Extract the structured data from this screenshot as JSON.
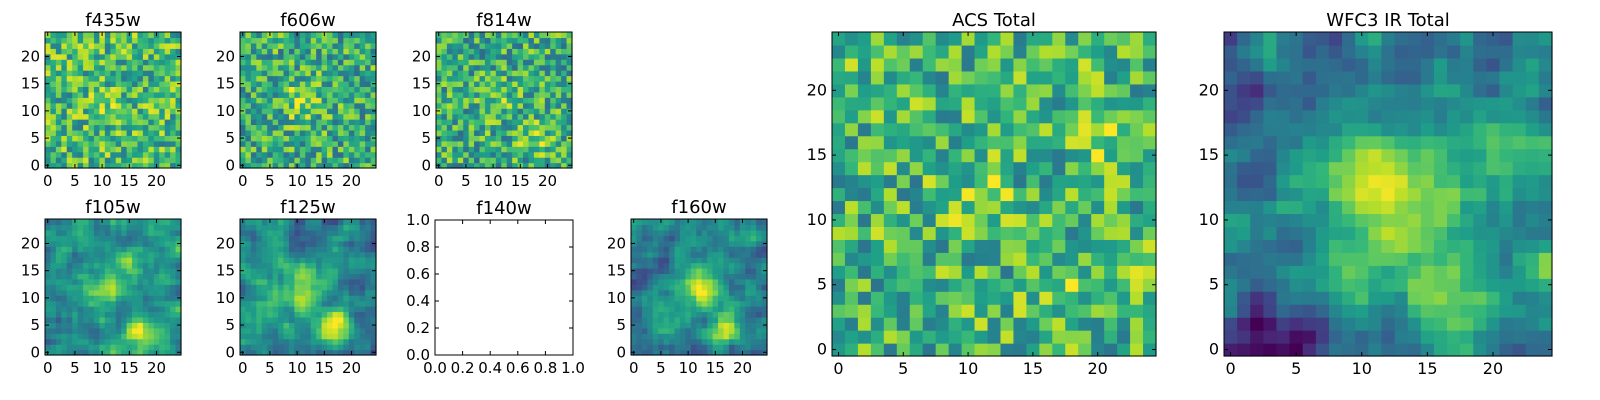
{
  "figure": {
    "colormap": "viridis",
    "colors": {
      "viridis": [
        "#440154",
        "#482878",
        "#3e4989",
        "#31688e",
        "#26828e",
        "#1f9e89",
        "#35b779",
        "#6ece58",
        "#b5de2b",
        "#fde725"
      ],
      "axes": "#000000",
      "background": "#ffffff"
    }
  },
  "chart_data": [
    {
      "type": "heatmap",
      "title": "f435w",
      "grid_size": [
        25,
        25
      ],
      "xlim": [
        0,
        24
      ],
      "ylim": [
        0,
        24
      ],
      "xticks": [
        "0",
        "5",
        "10",
        "15",
        "20"
      ],
      "yticks": [
        "0",
        "5",
        "10",
        "15",
        "20"
      ],
      "value_range": [
        0,
        1
      ],
      "noise": "pixel",
      "base": 0.68,
      "seed": 11,
      "sources": [
        {
          "x": 11,
          "y": 11,
          "amp": 0.12,
          "sigma": 2
        }
      ]
    },
    {
      "type": "heatmap",
      "title": "f606w",
      "grid_size": [
        25,
        25
      ],
      "xlim": [
        0,
        24
      ],
      "ylim": [
        0,
        24
      ],
      "xticks": [
        "0",
        "5",
        "10",
        "15",
        "20"
      ],
      "yticks": [
        "0",
        "5",
        "10",
        "15",
        "20"
      ],
      "value_range": [
        0,
        1
      ],
      "noise": "pixel",
      "base": 0.62,
      "seed": 23,
      "sources": [
        {
          "x": 11,
          "y": 12,
          "amp": 0.25,
          "sigma": 2.5
        }
      ]
    },
    {
      "type": "heatmap",
      "title": "f814w",
      "grid_size": [
        25,
        25
      ],
      "xlim": [
        0,
        24
      ],
      "ylim": [
        0,
        24
      ],
      "xticks": [
        "0",
        "5",
        "10",
        "15",
        "20"
      ],
      "yticks": [
        "0",
        "5",
        "10",
        "15",
        "20"
      ],
      "value_range": [
        0,
        1
      ],
      "noise": "pixel",
      "base": 0.62,
      "seed": 37,
      "sources": [
        {
          "x": 18,
          "y": 5,
          "amp": 0.25,
          "sigma": 2
        },
        {
          "x": 11,
          "y": 12,
          "amp": 0.12,
          "sigma": 2.5
        }
      ]
    },
    {
      "type": "heatmap",
      "title": "f105w",
      "grid_size": [
        25,
        25
      ],
      "xlim": [
        0,
        24
      ],
      "ylim": [
        0,
        24
      ],
      "xticks": [
        "0",
        "5",
        "10",
        "15",
        "20"
      ],
      "yticks": [
        "0",
        "5",
        "10",
        "15",
        "20"
      ],
      "value_range": [
        0,
        1
      ],
      "noise": "smooth",
      "base": 0.5,
      "seed": 41,
      "sources": [
        {
          "x": 17,
          "y": 4,
          "amp": 0.45,
          "sigma": 2
        },
        {
          "x": 11,
          "y": 12,
          "amp": 0.3,
          "sigma": 2.5
        },
        {
          "x": 14,
          "y": 16,
          "amp": 0.2,
          "sigma": 2
        }
      ]
    },
    {
      "type": "heatmap",
      "title": "f125w",
      "grid_size": [
        25,
        25
      ],
      "xlim": [
        0,
        24
      ],
      "ylim": [
        0,
        24
      ],
      "xticks": [
        "0",
        "5",
        "10",
        "15",
        "20"
      ],
      "yticks": [
        "0",
        "5",
        "10",
        "15",
        "20"
      ],
      "value_range": [
        0,
        1
      ],
      "noise": "smooth",
      "base": 0.48,
      "seed": 53,
      "sources": [
        {
          "x": 17,
          "y": 4,
          "amp": 0.45,
          "sigma": 2.2
        },
        {
          "x": 11,
          "y": 11,
          "amp": 0.35,
          "sigma": 3
        }
      ]
    },
    {
      "type": "empty",
      "title": "f140w",
      "xlim": [
        0,
        1
      ],
      "ylim": [
        0,
        1
      ],
      "xticks": [
        "0.0",
        "0.2",
        "0.4",
        "0.6",
        "0.8",
        "1.0"
      ],
      "yticks": [
        "0.0",
        "0.2",
        "0.4",
        "0.6",
        "0.8",
        "1.0"
      ]
    },
    {
      "type": "heatmap",
      "title": "f160w",
      "grid_size": [
        25,
        25
      ],
      "xlim": [
        0,
        24
      ],
      "ylim": [
        0,
        24
      ],
      "xticks": [
        "0",
        "5",
        "10",
        "15",
        "20"
      ],
      "yticks": [
        "0",
        "5",
        "10",
        "15",
        "20"
      ],
      "value_range": [
        0,
        1
      ],
      "noise": "smooth",
      "base": 0.45,
      "seed": 67,
      "sources": [
        {
          "x": 12,
          "y": 12,
          "amp": 0.45,
          "sigma": 3
        },
        {
          "x": 17,
          "y": 4,
          "amp": 0.4,
          "sigma": 2
        }
      ]
    },
    {
      "type": "heatmap",
      "title": "ACS Total",
      "grid_size": [
        25,
        25
      ],
      "xlim": [
        0,
        24
      ],
      "ylim": [
        0,
        24
      ],
      "xticks": [
        "0",
        "5",
        "10",
        "15",
        "20"
      ],
      "yticks": [
        "0",
        "5",
        "10",
        "15",
        "20"
      ],
      "value_range": [
        0,
        1
      ],
      "noise": "pixel",
      "base": 0.66,
      "seed": 79,
      "sources": [
        {
          "x": 11,
          "y": 11,
          "amp": 0.2,
          "sigma": 1.5
        },
        {
          "x": 20,
          "y": 17,
          "amp": 0.18,
          "sigma": 1.5
        },
        {
          "x": 17,
          "y": 5,
          "amp": 0.2,
          "sigma": 1.2
        },
        {
          "x": 24,
          "y": 7,
          "amp": 0.2,
          "sigma": 1
        }
      ]
    },
    {
      "type": "heatmap",
      "title": "WFC3 IR Total",
      "grid_size": [
        25,
        25
      ],
      "xlim": [
        0,
        24
      ],
      "ylim": [
        0,
        24
      ],
      "xticks": [
        "0",
        "5",
        "10",
        "15",
        "20"
      ],
      "yticks": [
        "0",
        "5",
        "10",
        "15",
        "20"
      ],
      "value_range": [
        0,
        1
      ],
      "noise": "smooth",
      "base": 0.42,
      "seed": 97,
      "sources": [
        {
          "x": 12,
          "y": 12,
          "amp": 0.5,
          "sigma": 3.5
        },
        {
          "x": 17,
          "y": 4,
          "amp": 0.5,
          "sigma": 2.2
        },
        {
          "x": 20,
          "y": 16,
          "amp": 0.18,
          "sigma": 2
        },
        {
          "x": 24,
          "y": 6,
          "amp": 0.2,
          "sigma": 1.5
        }
      ],
      "sinks": [
        {
          "x": 2,
          "y": 3,
          "amp": 0.35,
          "sigma": 1.5
        },
        {
          "x": 2,
          "y": 20,
          "amp": 0.25,
          "sigma": 1.5
        },
        {
          "x": 6,
          "y": 1,
          "amp": 0.2,
          "sigma": 1.2
        }
      ]
    }
  ]
}
